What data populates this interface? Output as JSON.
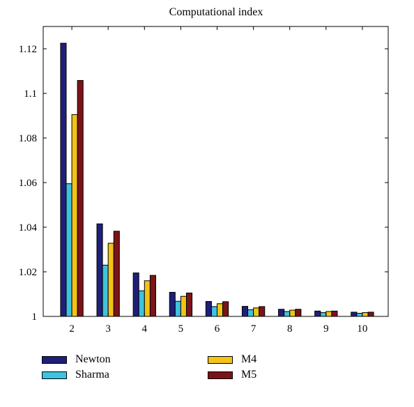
{
  "chart_data": {
    "type": "bar",
    "title": "Computational index",
    "xlabel": "",
    "ylabel": "",
    "categories": [
      "2",
      "3",
      "4",
      "5",
      "6",
      "7",
      "8",
      "9",
      "10"
    ],
    "ylim": [
      1,
      1.13
    ],
    "yticks": [
      1,
      1.02,
      1.04,
      1.06,
      1.08,
      1.1,
      1.12
    ],
    "ytick_labels": [
      "1",
      "1.02",
      "1.04",
      "1.06",
      "1.08",
      "1.1",
      "1.12"
    ],
    "grid": false,
    "legend_position": "bottom",
    "series": [
      {
        "name": "Newton",
        "color": "#1f1f7a",
        "values": [
          1.1225,
          1.0415,
          1.0195,
          1.0108,
          1.0067,
          1.0045,
          1.0032,
          1.0024,
          1.0019
        ]
      },
      {
        "name": "Sharma",
        "color": "#3fc2de",
        "values": [
          1.0595,
          1.023,
          1.0115,
          1.0068,
          1.0044,
          1.003,
          1.0022,
          1.0017,
          1.0014
        ]
      },
      {
        "name": "M4",
        "color": "#f2c318",
        "values": [
          1.0905,
          1.0328,
          1.016,
          1.009,
          1.0057,
          1.0038,
          1.0028,
          1.0022,
          1.0017
        ]
      },
      {
        "name": "M5",
        "color": "#7a1418",
        "values": [
          1.1058,
          1.0382,
          1.0184,
          1.0105,
          1.0066,
          1.0044,
          1.0032,
          1.0024,
          1.0019
        ]
      }
    ]
  }
}
